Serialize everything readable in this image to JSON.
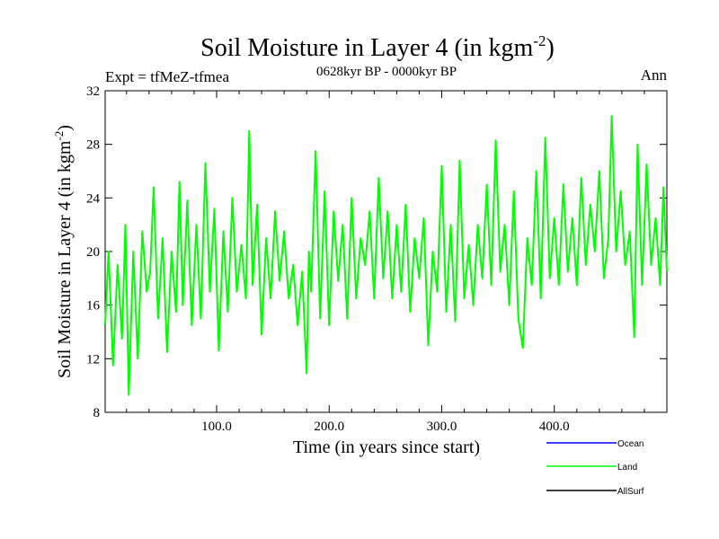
{
  "chart_data": {
    "type": "line",
    "title": "Soil Moisture in Layer 4 (in kgm",
    "title_exponent": "-2",
    "title_suffix": ")",
    "subtitle_left": "Expt = tfMeZ-tfmea",
    "subtitle_center": "0628kyr BP - 0000kyr BP",
    "subtitle_right": "Ann",
    "xlabel": "Time (in years since start)",
    "ylabel": "Soil Moisture in Layer 4 (in kgm",
    "ylabel_exponent": "-2",
    "ylabel_suffix": ")",
    "xlim": [
      1,
      500
    ],
    "ylim": [
      8,
      32
    ],
    "x_ticks": [
      100,
      200,
      300,
      400
    ],
    "x_tick_labels": [
      "100.0",
      "200.0",
      "300.0",
      "400.0"
    ],
    "y_ticks": [
      8,
      12,
      16,
      20,
      24,
      28,
      32
    ],
    "y_tick_labels": [
      "8",
      "12",
      "16",
      "20",
      "24",
      "28",
      "32"
    ],
    "legend": [
      {
        "name": "Ocean",
        "color": "#0000ff"
      },
      {
        "name": "Land",
        "color": "#00ff00"
      },
      {
        "name": "AllSurf",
        "color": "#000000"
      }
    ],
    "series": [
      {
        "name": "Land",
        "color": "#00ff00",
        "x": [
          1,
          4,
          8,
          12,
          16,
          19,
          22,
          26,
          30,
          34,
          38,
          41,
          44,
          48,
          52,
          56,
          60,
          64,
          67,
          70,
          74,
          78,
          82,
          86,
          90,
          94,
          98,
          102,
          106,
          110,
          114,
          118,
          122,
          126,
          129,
          132,
          136,
          140,
          144,
          148,
          152,
          156,
          160,
          164,
          168,
          172,
          176,
          180,
          182,
          184,
          188,
          192,
          196,
          200,
          204,
          208,
          212,
          216,
          220,
          224,
          228,
          232,
          236,
          240,
          244,
          248,
          252,
          256,
          260,
          264,
          268,
          272,
          276,
          280,
          284,
          288,
          292,
          296,
          300,
          304,
          308,
          312,
          316,
          320,
          324,
          328,
          332,
          336,
          340,
          344,
          348,
          352,
          356,
          360,
          364,
          368,
          372,
          376,
          380,
          384,
          388,
          392,
          396,
          400,
          404,
          408,
          412,
          416,
          420,
          424,
          428,
          432,
          436,
          440,
          444,
          448,
          451,
          455,
          459,
          463,
          467,
          471,
          474,
          478,
          482,
          486,
          490,
          494,
          497,
          500
        ],
        "values": [
          14.5,
          20,
          11.5,
          19,
          13.5,
          22,
          9.3,
          20,
          12,
          21.5,
          17,
          18.5,
          24.8,
          15,
          21,
          12.5,
          20,
          15.5,
          25.2,
          16,
          23.8,
          14.5,
          22,
          15,
          26.6,
          17,
          23.2,
          12.6,
          21.5,
          15.5,
          24,
          17,
          20.5,
          16.5,
          29,
          17.5,
          23.5,
          13.8,
          21,
          16.5,
          23,
          17.8,
          21.5,
          16.5,
          19,
          14.5,
          18.5,
          10.9,
          20,
          17,
          27.5,
          15,
          24.5,
          14.5,
          23,
          17.8,
          22,
          15,
          24,
          16.5,
          21,
          19,
          23,
          16.5,
          25.5,
          18,
          23,
          16.5,
          22,
          17,
          23.5,
          15.5,
          21,
          18,
          22.5,
          13,
          20,
          17,
          26.4,
          15.5,
          22,
          14.8,
          26.8,
          16.5,
          20.5,
          16,
          22,
          18,
          25,
          17.5,
          28.3,
          18.5,
          22,
          16,
          24.5,
          15,
          12.8,
          21,
          17.5,
          26,
          16.5,
          28.5,
          18,
          22.5,
          17.5,
          25,
          18.5,
          22.5,
          17.5,
          25.5,
          19,
          23.5,
          20,
          26,
          18,
          21,
          30.1,
          20,
          24.5,
          19,
          21.5,
          13.6,
          28,
          17.5,
          26.5,
          19,
          22.5,
          17.5,
          24.8,
          18.5
        ]
      }
    ]
  }
}
